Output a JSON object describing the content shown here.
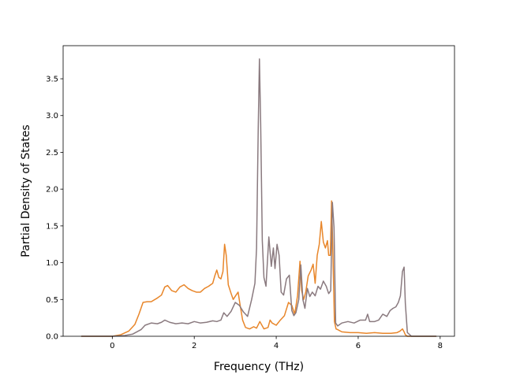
{
  "chart_data": {
    "type": "line",
    "title": "",
    "xlabel": "Frequency (THz)",
    "ylabel": "Partial Density of States",
    "xlim": [
      -1.2,
      8.35
    ],
    "ylim": [
      0.0,
      3.95
    ],
    "xticks": [
      0,
      2,
      4,
      6,
      8
    ],
    "xtick_labels": [
      "0",
      "2",
      "4",
      "6",
      "8"
    ],
    "yticks": [
      0.0,
      0.5,
      1.0,
      1.5,
      2.0,
      2.5,
      3.0,
      3.5
    ],
    "ytick_labels": [
      "0.0",
      "0.5",
      "1.0",
      "1.5",
      "2.0",
      "2.5",
      "3.0",
      "3.5"
    ],
    "grid": false,
    "legend": "none",
    "series": [
      {
        "color": "#e8862a",
        "x": [
          -0.75,
          0.0,
          0.2,
          0.4,
          0.55,
          0.65,
          0.75,
          0.85,
          0.95,
          1.1,
          1.2,
          1.28,
          1.35,
          1.45,
          1.55,
          1.65,
          1.75,
          1.85,
          1.95,
          2.05,
          2.15,
          2.25,
          2.35,
          2.45,
          2.5,
          2.55,
          2.6,
          2.65,
          2.7,
          2.74,
          2.78,
          2.83,
          2.9,
          2.95,
          3.02,
          3.07,
          3.12,
          3.18,
          3.25,
          3.35,
          3.45,
          3.52,
          3.6,
          3.7,
          3.8,
          3.85,
          3.9,
          4.0,
          4.1,
          4.2,
          4.3,
          4.38,
          4.45,
          4.52,
          4.58,
          4.62,
          4.67,
          4.72,
          4.78,
          4.85,
          4.9,
          4.95,
          5.0,
          5.05,
          5.1,
          5.15,
          5.2,
          5.25,
          5.28,
          5.32,
          5.35,
          5.38,
          5.42,
          5.46,
          5.5,
          5.6,
          5.8,
          6.0,
          6.2,
          6.4,
          6.6,
          6.8,
          6.95,
          7.02,
          7.08,
          7.12,
          7.15,
          7.2,
          7.3,
          7.6,
          7.9
        ],
        "y": [
          0.0,
          0.0,
          0.02,
          0.07,
          0.16,
          0.3,
          0.46,
          0.47,
          0.47,
          0.52,
          0.56,
          0.67,
          0.69,
          0.62,
          0.6,
          0.67,
          0.7,
          0.65,
          0.62,
          0.6,
          0.6,
          0.65,
          0.68,
          0.72,
          0.82,
          0.9,
          0.8,
          0.78,
          0.88,
          1.25,
          1.1,
          0.7,
          0.58,
          0.5,
          0.56,
          0.6,
          0.42,
          0.22,
          0.12,
          0.1,
          0.13,
          0.11,
          0.2,
          0.1,
          0.12,
          0.22,
          0.18,
          0.15,
          0.22,
          0.28,
          0.46,
          0.42,
          0.3,
          0.55,
          1.02,
          0.62,
          0.5,
          0.6,
          0.82,
          0.9,
          0.98,
          0.72,
          1.1,
          1.25,
          1.56,
          1.28,
          1.2,
          1.3,
          1.1,
          1.1,
          1.84,
          1.2,
          0.2,
          0.1,
          0.09,
          0.06,
          0.05,
          0.05,
          0.04,
          0.05,
          0.04,
          0.04,
          0.05,
          0.07,
          0.1,
          0.06,
          0.02,
          0.0,
          0.0,
          0.0,
          0.0
        ]
      },
      {
        "color": "#8a7a7f",
        "x": [
          -0.75,
          0.0,
          0.3,
          0.5,
          0.7,
          0.8,
          0.95,
          1.1,
          1.2,
          1.28,
          1.4,
          1.55,
          1.7,
          1.85,
          2.0,
          2.15,
          2.3,
          2.45,
          2.55,
          2.65,
          2.72,
          2.8,
          2.9,
          3.0,
          3.1,
          3.2,
          3.3,
          3.4,
          3.48,
          3.52,
          3.56,
          3.59,
          3.62,
          3.66,
          3.7,
          3.75,
          3.82,
          3.88,
          3.93,
          3.97,
          4.02,
          4.07,
          4.12,
          4.18,
          4.25,
          4.32,
          4.38,
          4.43,
          4.48,
          4.55,
          4.6,
          4.65,
          4.7,
          4.76,
          4.82,
          4.88,
          4.95,
          5.02,
          5.08,
          5.15,
          5.22,
          5.28,
          5.33,
          5.37,
          5.41,
          5.45,
          5.5,
          5.6,
          5.75,
          5.9,
          6.05,
          6.18,
          6.23,
          6.28,
          6.4,
          6.5,
          6.6,
          6.7,
          6.78,
          6.85,
          6.92,
          6.98,
          7.03,
          7.08,
          7.12,
          7.15,
          7.2,
          7.3,
          7.6,
          7.9
        ],
        "y": [
          0.0,
          0.0,
          0.01,
          0.03,
          0.09,
          0.15,
          0.18,
          0.17,
          0.19,
          0.22,
          0.19,
          0.17,
          0.18,
          0.17,
          0.2,
          0.18,
          0.19,
          0.21,
          0.2,
          0.22,
          0.32,
          0.27,
          0.34,
          0.46,
          0.42,
          0.33,
          0.27,
          0.5,
          0.72,
          1.2,
          2.8,
          3.77,
          2.9,
          1.3,
          0.8,
          0.68,
          1.35,
          0.95,
          1.2,
          0.92,
          1.25,
          1.1,
          0.6,
          0.56,
          0.78,
          0.83,
          0.35,
          0.28,
          0.32,
          0.5,
          0.97,
          0.5,
          0.38,
          0.65,
          0.54,
          0.6,
          0.55,
          0.68,
          0.64,
          0.75,
          0.68,
          0.58,
          0.62,
          1.82,
          1.48,
          0.18,
          0.14,
          0.18,
          0.2,
          0.18,
          0.22,
          0.22,
          0.3,
          0.2,
          0.2,
          0.22,
          0.3,
          0.27,
          0.35,
          0.38,
          0.4,
          0.46,
          0.55,
          0.88,
          0.94,
          0.45,
          0.05,
          0.0,
          0.0,
          0.0
        ]
      }
    ]
  }
}
